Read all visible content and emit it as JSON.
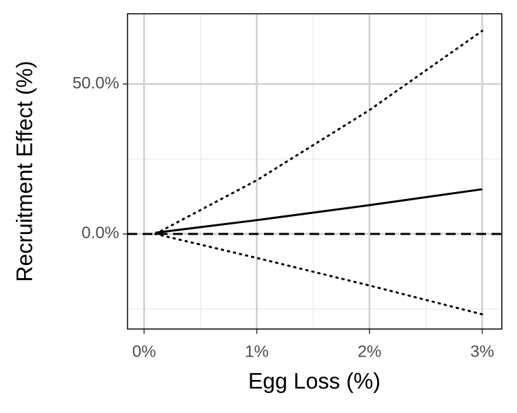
{
  "chart_data": {
    "type": "line",
    "x_label": "Egg Loss (%)",
    "y_label": "Recruitment Effect (%)",
    "x": [
      0.1,
      1,
      2,
      3
    ],
    "series": [
      {
        "values": [
          0.4,
          4.6,
          9.6,
          14.9
        ],
        "color": "#000000",
        "style": "solid"
      },
      {
        "values": [
          0,
          17.9,
          41.3,
          67.7
        ],
        "color": "#000000",
        "style": "dotted"
      },
      {
        "values": [
          0,
          -8,
          -17.2,
          -26.8
        ],
        "color": "#000000",
        "style": "dotted"
      }
    ],
    "hline": {
      "value": 0,
      "color": "#000000",
      "style": "dashed"
    },
    "xlim": [
      -0.147,
      3.174
    ],
    "ylim": [
      -31.7,
      73.4
    ],
    "xticks": [
      {
        "value": 0,
        "label": "0%"
      },
      {
        "value": 1,
        "label": "1%"
      },
      {
        "value": 2,
        "label": "2%"
      },
      {
        "value": 3,
        "label": "3%"
      }
    ],
    "yticks": [
      {
        "value": 0,
        "label": "0.0%"
      },
      {
        "value": 50,
        "label": "50.0%"
      }
    ],
    "x_minor_ticks": [
      0.5,
      1.5,
      2.5
    ],
    "y_minor_ticks": [
      -25,
      25
    ],
    "grid": true
  }
}
